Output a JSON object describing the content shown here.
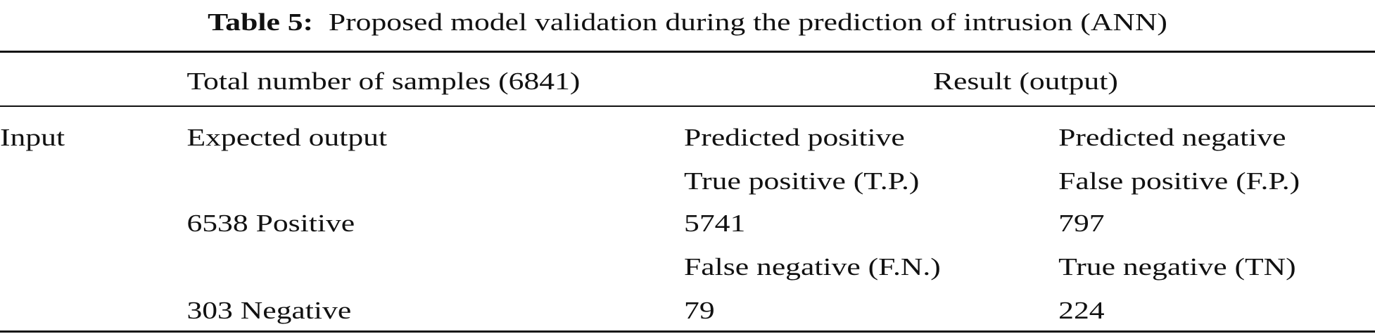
{
  "caption": {
    "label": "Table 5:",
    "text": "Proposed model validation during the prediction of intrusion (ANN)"
  },
  "header": {
    "samples": "Total number of samples (6841)",
    "result": "Result (output)"
  },
  "rows": [
    {
      "c1": "Input",
      "c2": "Expected output",
      "c3": "Predicted positive",
      "c4": "Predicted negative"
    },
    {
      "c1": "",
      "c2": "",
      "c3": "True positive (T.P.)",
      "c4": "False positive (F.P.)"
    },
    {
      "c1": "",
      "c2": "6538 Positive",
      "c3": "5741",
      "c4": "797"
    },
    {
      "c1": "",
      "c2": "",
      "c3": "False negative (F.N.)",
      "c4": "True negative (TN)"
    },
    {
      "c1": "",
      "c2": "303 Negative",
      "c3": "79",
      "c4": "224"
    }
  ]
}
